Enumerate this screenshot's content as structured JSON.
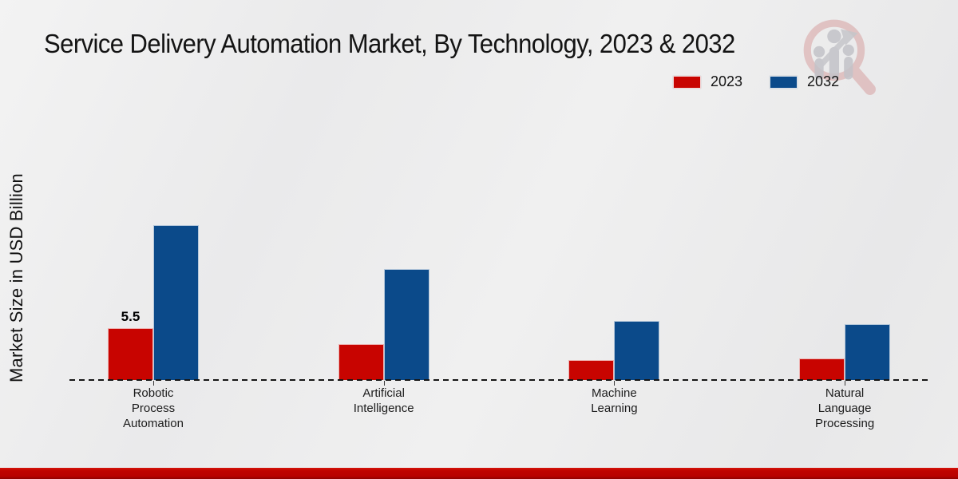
{
  "header": {
    "title": "Service Delivery Automation Market, By Technology, 2023 & 2032"
  },
  "axes": {
    "y_label": "Market Size in USD Billion"
  },
  "legend": {
    "position": "top-right",
    "items": [
      {
        "label": "2023",
        "color": "#c80400"
      },
      {
        "label": "2032",
        "color": "#0b4a8a"
      }
    ]
  },
  "chart_data": {
    "type": "bar",
    "title": "Service Delivery Automation Market, By Technology, 2023 & 2032",
    "categories": [
      "Robotic Process Automation",
      "Artificial Intelligence",
      "Machine Learning",
      "Natural Language Processing"
    ],
    "series": [
      {
        "name": "2023",
        "color": "#c80400",
        "values": [
          5.5,
          3.8,
          2.1,
          2.3
        ]
      },
      {
        "name": "2032",
        "color": "#0b4a8a",
        "values": [
          16.4,
          11.8,
          6.3,
          5.9
        ]
      }
    ],
    "data_labels": [
      {
        "series": "2023",
        "category": "Robotic Process Automation",
        "text": "5.5"
      }
    ],
    "xlabel": "",
    "ylabel": "Market Size in USD Billion",
    "ylim": [
      0,
      18
    ],
    "grid": false,
    "legend_position": "top-right",
    "baseline_style": "dashed"
  },
  "watermark": {
    "icon": "magnifier-bar-chart-logo"
  },
  "footer": {
    "stripe_color": "#bf0300"
  }
}
